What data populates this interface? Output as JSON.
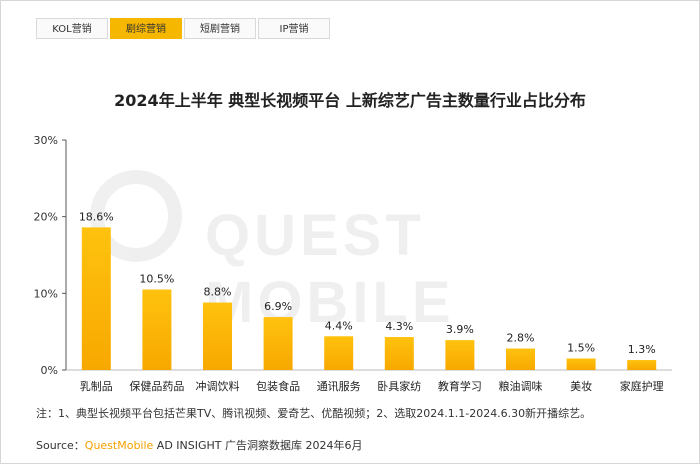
{
  "tabs": [
    {
      "label": "KOL营销",
      "active": false
    },
    {
      "label": "剧综营销",
      "active": true
    },
    {
      "label": "短剧营销",
      "active": false
    },
    {
      "label": "IP营销",
      "active": false
    }
  ],
  "watermark": "QUEST MOBILE",
  "note": "注：1、典型长视频平台包括芒果TV、腾讯视频、爱奇艺、优酷视频；2、选取2024.1.1-2024.6.30新开播综艺。",
  "source": {
    "prefix": "Source：",
    "brand": "QuestMobile",
    "rest": " AD INSIGHT 广告洞察数据库 2024年6月"
  },
  "colors": {
    "bar_top": "#FFC20E",
    "bar_bottom": "#F7A800",
    "accent": "#F5B700"
  },
  "chart_data": {
    "type": "bar",
    "title": "2024年上半年 典型长视频平台 上新综艺广告主数量行业占比分布",
    "categories": [
      "乳制品",
      "保健品药品",
      "冲调饮料",
      "包装食品",
      "通讯服务",
      "卧具家纺",
      "教育学习",
      "粮油调味",
      "美妆",
      "家庭护理"
    ],
    "values": [
      18.6,
      10.5,
      8.8,
      6.9,
      4.4,
      4.3,
      3.9,
      2.8,
      1.5,
      1.3
    ],
    "value_labels": [
      "18.6%",
      "10.5%",
      "8.8%",
      "6.9%",
      "4.4%",
      "4.3%",
      "3.9%",
      "2.8%",
      "1.5%",
      "1.3%"
    ],
    "y_ticks": [
      "0%",
      "10%",
      "20%",
      "30%"
    ],
    "ylim": [
      0,
      30
    ],
    "unit": "%",
    "xlabel": "",
    "ylabel": "",
    "grid": false,
    "legend": "none"
  }
}
